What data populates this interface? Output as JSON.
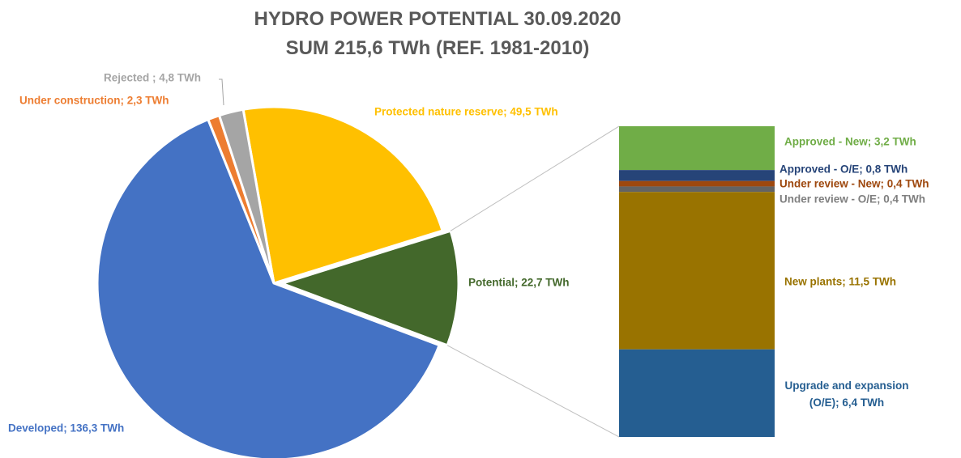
{
  "chart_data": {
    "type": "pie",
    "title": "HYDRO POWER POTENTIAL 30.09.2020",
    "subtitle": "SUM 215,6 TWh (REF. 1981-2010)",
    "values": [
      49.5,
      22.7,
      136.3,
      2.3,
      4.8
    ],
    "value_labels": [
      "Protected nature reserve; 49,5 TWh",
      "Potential; 22,7 TWh",
      "Developed; 136,3 TWh",
      "Under construction; 2,3 TWh",
      "Rejected ; 4,8 TWh"
    ],
    "colors": [
      "#ffc000",
      "#43682b",
      "#4472c4",
      "#ed7d31",
      "#a5a5a5"
    ],
    "breakdown": {
      "type": "bar",
      "values": [
        3.2,
        0.8,
        0.4,
        0.4,
        11.5,
        6.4
      ],
      "value_labels": [
        "Approved - New; 3,2 TWh",
        "Approved - O/E; 0,8 TWh",
        "Under review - New; 0,4 TWh",
        "Under review - O/E; 0,4 TWh",
        "New plants; 11,5 TWh",
        "Upgrade and expansion (O/E); 6,4 TWh"
      ],
      "colors": [
        "#70ad47",
        "#264478",
        "#9e480e",
        "#636363",
        "#997300",
        "#255e91"
      ]
    }
  }
}
